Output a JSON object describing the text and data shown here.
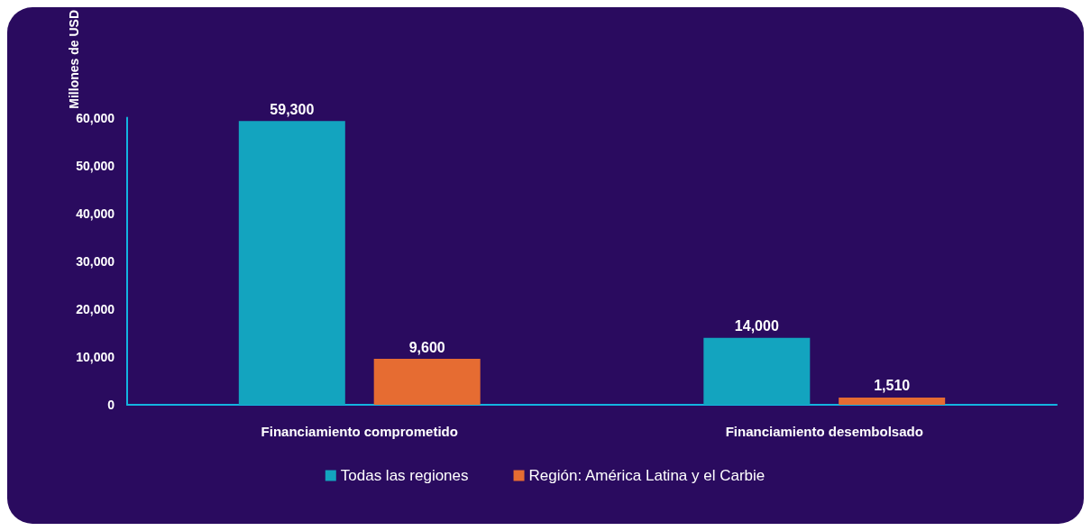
{
  "chart_data": {
    "type": "bar",
    "ylabel": "Millones de USD",
    "categories": [
      "Financiamiento comprometido",
      "Financiamiento desembolsado"
    ],
    "series": [
      {
        "name": "Todas las regiones",
        "color": "#13a4bf",
        "values": [
          59300,
          14000
        ],
        "value_labels": [
          "59,300",
          "14,000"
        ]
      },
      {
        "name": "Región: América Latina y el Carbie",
        "color": "#e66c32",
        "values": [
          9600,
          1510
        ],
        "value_labels": [
          "9,600",
          "1,510"
        ]
      }
    ],
    "ylim": [
      0,
      60000
    ],
    "yticks": [
      {
        "value": 0,
        "label": "0"
      },
      {
        "value": 10000,
        "label": "10,000"
      },
      {
        "value": 20000,
        "label": "20,000"
      },
      {
        "value": 30000,
        "label": "30,000"
      },
      {
        "value": 40000,
        "label": "40,000"
      },
      {
        "value": 50000,
        "label": "50,000"
      },
      {
        "value": 60000,
        "label": "60,000"
      }
    ],
    "grid": false,
    "legend": "bottom"
  }
}
